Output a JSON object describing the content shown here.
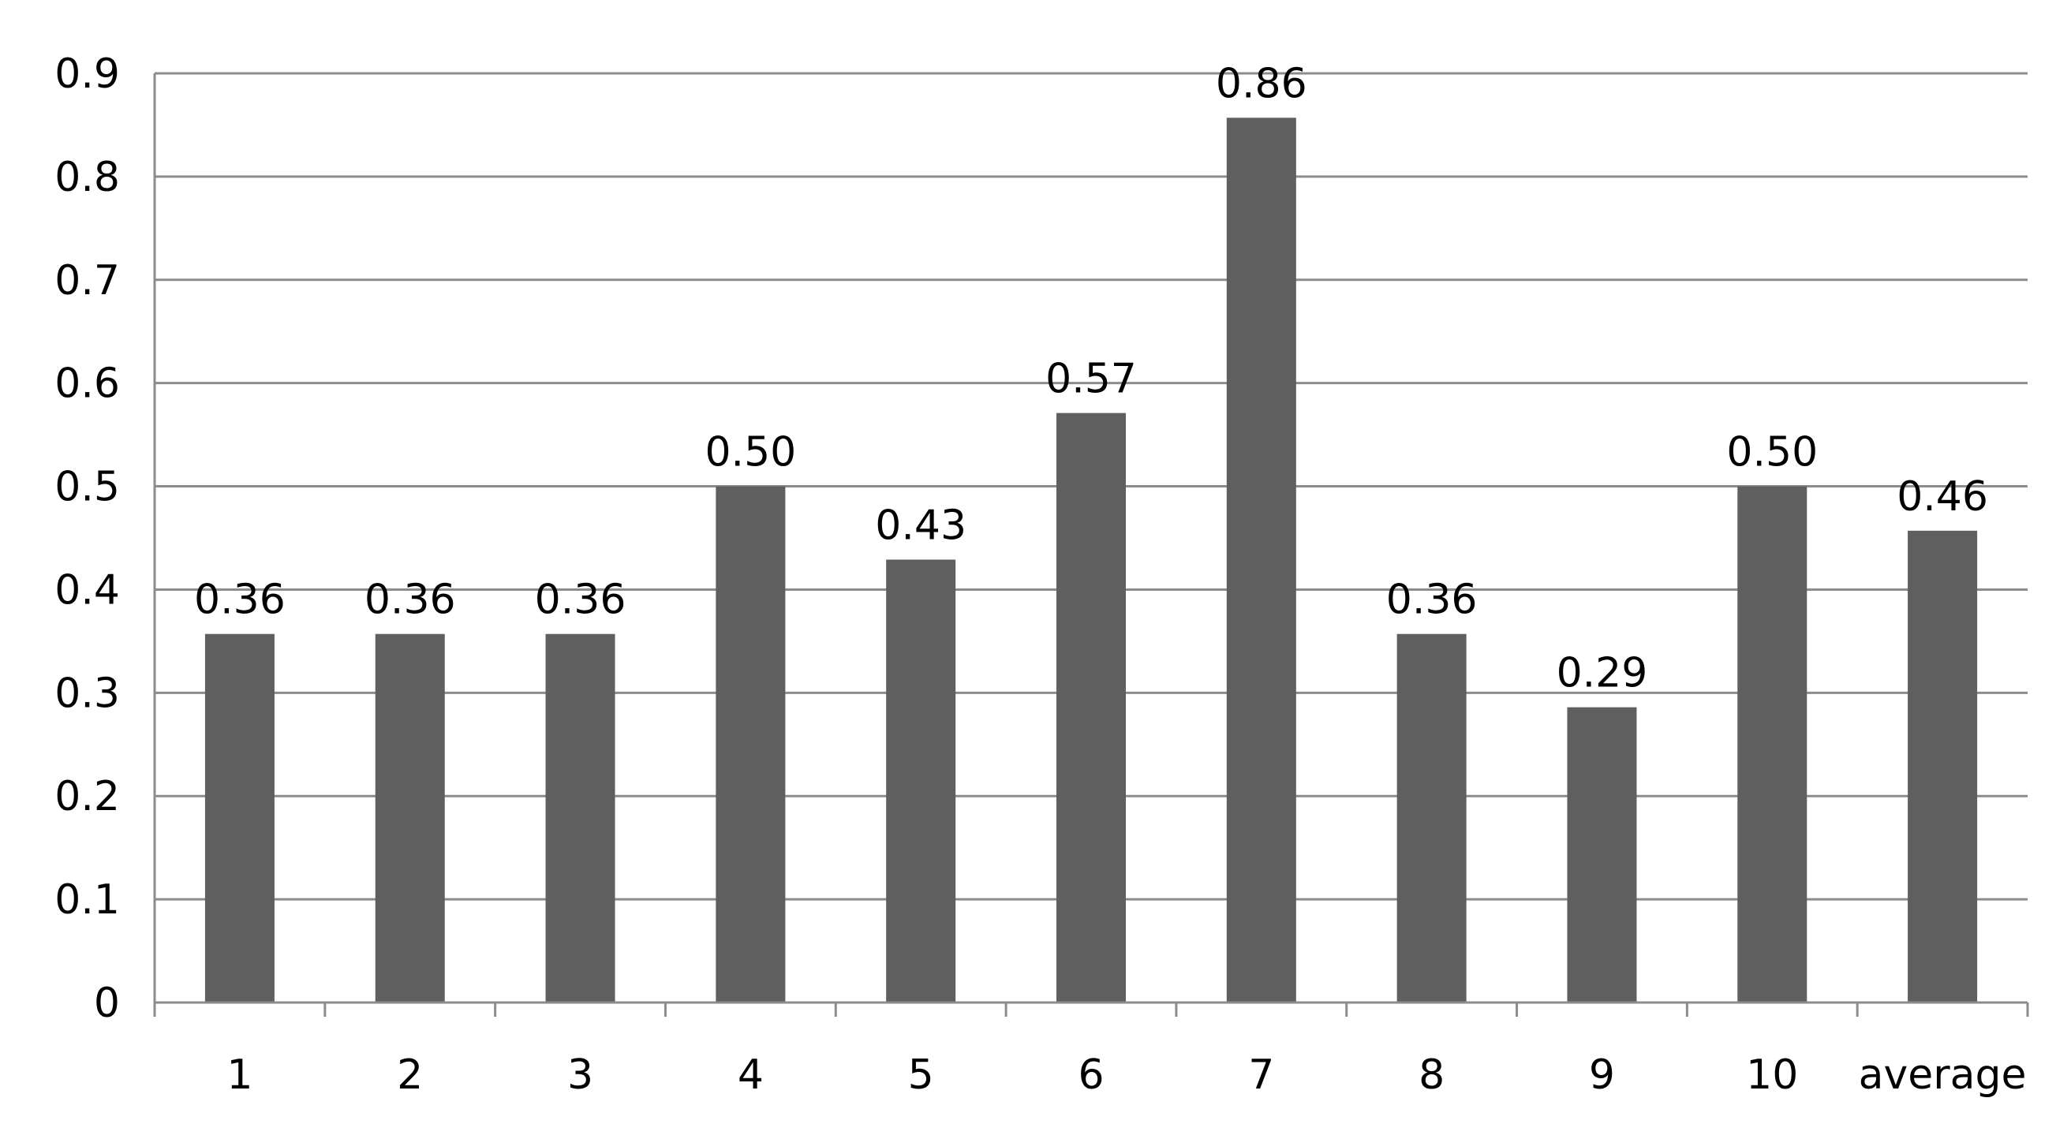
{
  "chart_data": {
    "type": "bar",
    "categories": [
      "1",
      "2",
      "3",
      "4",
      "5",
      "6",
      "7",
      "8",
      "9",
      "10",
      "average"
    ],
    "values": [
      0.357,
      0.357,
      0.357,
      0.5,
      0.429,
      0.571,
      0.857,
      0.357,
      0.286,
      0.5,
      0.457
    ],
    "data_labels": [
      "0.36",
      "0.36",
      "0.36",
      "0.50",
      "0.43",
      "0.57",
      "0.86",
      "0.36",
      "0.29",
      "0.50",
      "0.46"
    ],
    "y_ticks": [
      0,
      0.1,
      0.2,
      0.3,
      0.4,
      0.5,
      0.6,
      0.7,
      0.8,
      0.9
    ],
    "y_tick_labels": [
      "0",
      "0.1",
      "0.2",
      "0.3",
      "0.4",
      "0.5",
      "0.6",
      "0.7",
      "0.8",
      "0.9"
    ],
    "ylim": [
      0,
      0.9
    ],
    "title": "",
    "xlabel": "",
    "ylabel": "",
    "grid": true,
    "legend": "none",
    "colors": {
      "bar": "#5f5f5f",
      "grid": "#8c8c8c",
      "axis": "#8c8c8c",
      "text": "#000000"
    }
  }
}
